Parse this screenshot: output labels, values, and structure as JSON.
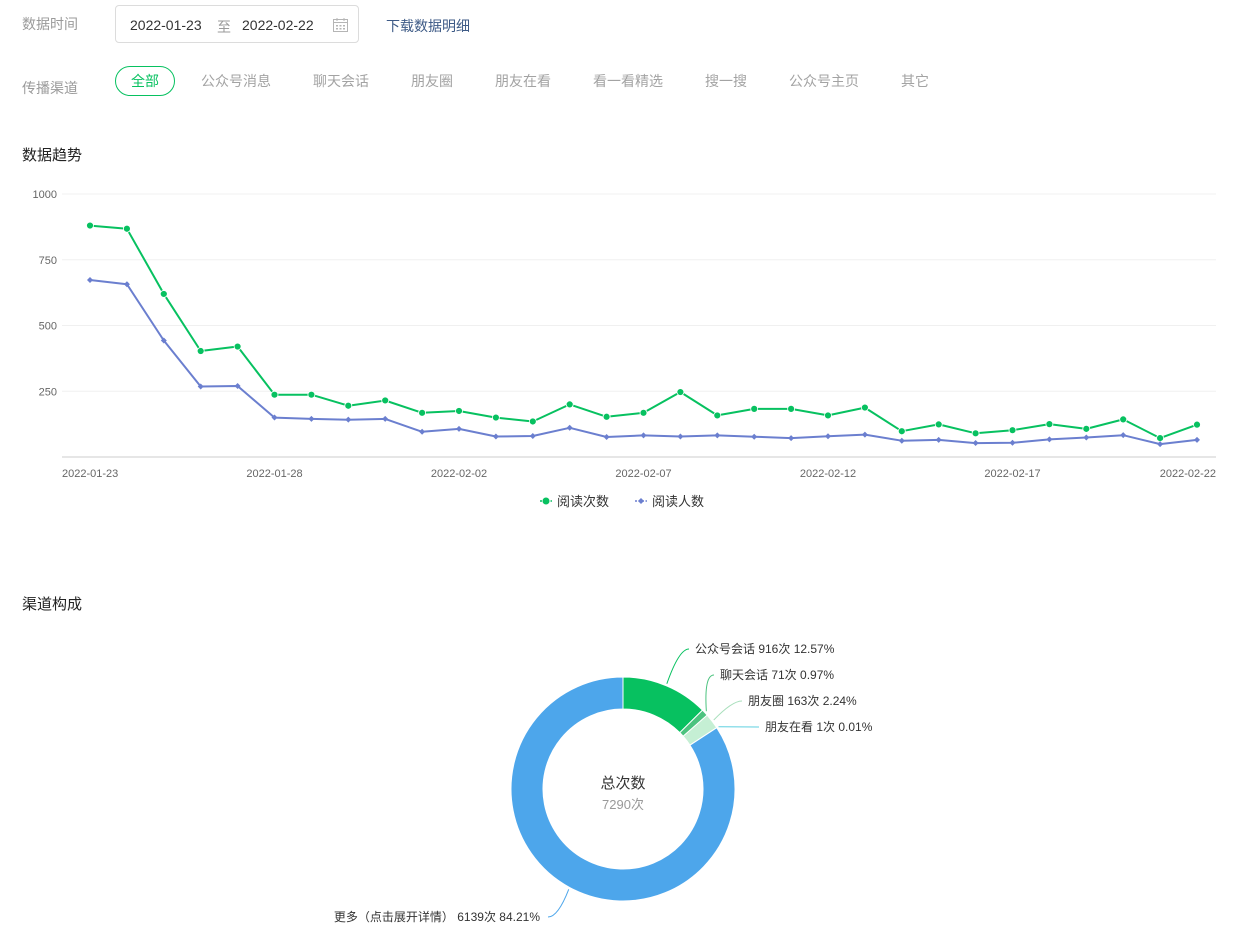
{
  "filters": {
    "date_label": "数据时间",
    "start_date": "2022-01-23",
    "range_separator": "至",
    "end_date": "2022-02-22",
    "calendar_icon": "calendar-icon",
    "download_label": "下载数据明细",
    "channel_label": "传播渠道",
    "channels": [
      "全部",
      "公众号消息",
      "聊天会话",
      "朋友圈",
      "朋友在看",
      "看一看精选",
      "搜一搜",
      "公众号主页",
      "其它"
    ],
    "active_channel": "全部"
  },
  "trend": {
    "title": "数据趋势"
  },
  "composition": {
    "title": "渠道构成",
    "center_title": "总次数",
    "center_value": "7290次"
  },
  "colors": {
    "accent": "#07c160",
    "series_reads": "#07c160",
    "series_users": "#6b7fcf",
    "pie_more": "#4da6eb",
    "pie_chat": "#4cc37f",
    "pie_moments": "#c5efd4",
    "pie_watching": "#5fd0e0"
  },
  "chart_data": [
    {
      "type": "line",
      "x": [
        "2022-01-23",
        "2022-01-24",
        "2022-01-25",
        "2022-01-26",
        "2022-01-27",
        "2022-01-28",
        "2022-01-29",
        "2022-01-30",
        "2022-01-31",
        "2022-02-01",
        "2022-02-02",
        "2022-02-03",
        "2022-02-04",
        "2022-02-05",
        "2022-02-06",
        "2022-02-07",
        "2022-02-08",
        "2022-02-09",
        "2022-02-10",
        "2022-02-11",
        "2022-02-12",
        "2022-02-13",
        "2022-02-14",
        "2022-02-15",
        "2022-02-16",
        "2022-02-17",
        "2022-02-18",
        "2022-02-19",
        "2022-02-20",
        "2022-02-21",
        "2022-02-22"
      ],
      "x_ticks": [
        "2022-01-23",
        "2022-01-28",
        "2022-02-02",
        "2022-02-07",
        "2022-02-12",
        "2022-02-17",
        "2022-02-22"
      ],
      "y_ticks": [
        250,
        500,
        750,
        1000
      ],
      "ylim": [
        0,
        1000
      ],
      "grid": true,
      "legend": "bottom-center",
      "series": [
        {
          "name": "阅读次数",
          "color": "#07c160",
          "marker": "circle",
          "values": [
            880,
            868,
            620,
            403,
            420,
            237,
            237,
            195,
            215,
            168,
            175,
            150,
            135,
            200,
            153,
            168,
            247,
            158,
            183,
            183,
            158,
            188,
            98,
            124,
            90,
            102,
            125,
            107,
            143,
            72,
            123
          ]
        },
        {
          "name": "阅读人数",
          "color": "#6b7fcf",
          "marker": "diamond",
          "values": [
            673,
            657,
            443,
            268,
            270,
            150,
            145,
            142,
            145,
            96,
            107,
            78,
            80,
            111,
            76,
            82,
            78,
            82,
            77,
            72,
            79,
            85,
            62,
            65,
            53,
            54,
            67,
            74,
            83,
            49,
            65
          ]
        }
      ]
    },
    {
      "type": "pie",
      "donut": true,
      "slices": [
        {
          "label": "公众号会话 916次 12.57%",
          "value": 916,
          "percent": 12.57,
          "color": "#07c160"
        },
        {
          "label": "聊天会话 71次 0.97%",
          "value": 71,
          "percent": 0.97,
          "color": "#4cc37f"
        },
        {
          "label": "朋友圈 163次 2.24%",
          "value": 163,
          "percent": 2.24,
          "color": "#c5efd4"
        },
        {
          "label": "朋友在看 1次 0.01%",
          "value": 1,
          "percent": 0.01,
          "color": "#5fd0e0"
        },
        {
          "label": "更多（点击展开详情） 6139次 84.21%",
          "value": 6139,
          "percent": 84.21,
          "color": "#4da6eb"
        }
      ]
    }
  ]
}
